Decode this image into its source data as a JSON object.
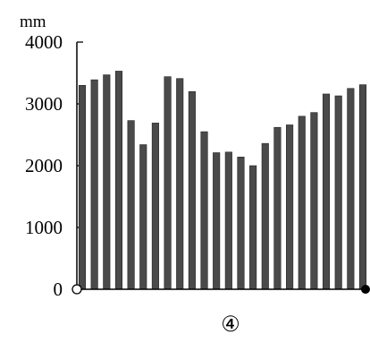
{
  "chart_data": {
    "type": "bar",
    "unit": "mm",
    "panel_label": "④",
    "y_ticks": [
      0,
      1000,
      2000,
      3000,
      4000
    ],
    "ylim": [
      0,
      4000
    ],
    "values": [
      3300,
      3390,
      3470,
      3530,
      2730,
      2340,
      2690,
      3440,
      3410,
      3200,
      2550,
      2210,
      2220,
      2140,
      2000,
      2360,
      2620,
      2660,
      2800,
      2860,
      3160,
      3130,
      3250,
      3310
    ],
    "grid": false,
    "legend": "none",
    "colors": {
      "bar": "#4a4a4a",
      "axis": "#000000"
    }
  }
}
